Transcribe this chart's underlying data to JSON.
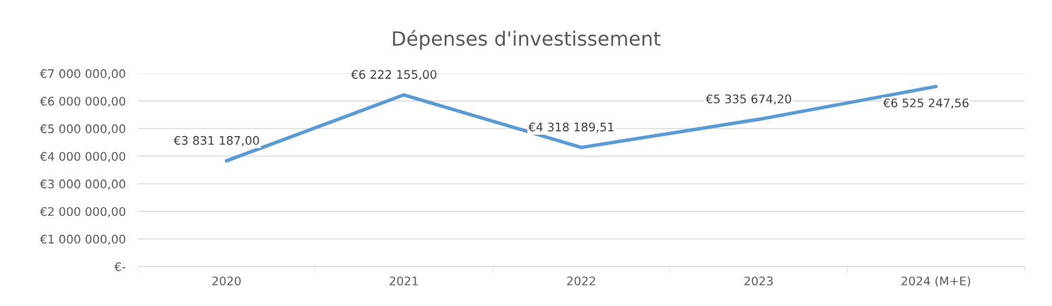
{
  "chart_data": {
    "type": "line",
    "title": "Dépenses d'investissement",
    "categories": [
      "2020",
      "2021",
      "2022",
      "2023",
      "2024 (M+E)"
    ],
    "series": [
      {
        "color": "#5b9bd5",
        "values": [
          3831187.0,
          6222155.0,
          4318189.51,
          5335674.2,
          6525247.56
        ],
        "value_labels": [
          "€3 831 187,00",
          "€6 222 155,00",
          "€4 318 189,51",
          "€5 335 674,20",
          "€6 525 247,56"
        ]
      }
    ],
    "ylim": [
      0,
      7000000
    ],
    "yticks": [
      {
        "value": 0,
        "label": "€-"
      },
      {
        "value": 1000000,
        "label": "€1 000 000,00"
      },
      {
        "value": 2000000,
        "label": "€2 000 000,00"
      },
      {
        "value": 3000000,
        "label": "€3 000 000,00"
      },
      {
        "value": 4000000,
        "label": "€4 000 000,00"
      },
      {
        "value": 5000000,
        "label": "€5 000 000,00"
      },
      {
        "value": 6000000,
        "label": "€6 000 000,00"
      },
      {
        "value": 7000000,
        "label": "€7 000 000,00"
      }
    ],
    "grid": "y",
    "marker": "none",
    "line_style": "solid"
  }
}
